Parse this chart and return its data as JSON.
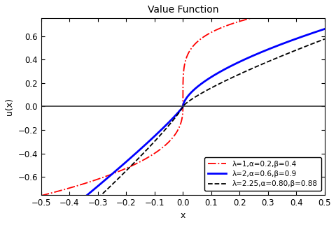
{
  "title": "Value Function",
  "xlabel": "x",
  "ylabel": "u(x)",
  "xlim": [
    -0.5,
    0.5
  ],
  "ylim": [
    -0.75,
    0.75
  ],
  "x_ticks": [
    -0.5,
    -0.4,
    -0.3,
    -0.2,
    -0.1,
    0.0,
    0.1,
    0.2,
    0.3,
    0.4,
    0.5
  ],
  "y_ticks": [
    -0.6,
    -0.4,
    -0.2,
    0.0,
    0.2,
    0.4,
    0.6
  ],
  "curves": [
    {
      "lambda": 1.0,
      "alpha": 0.2,
      "beta": 0.4,
      "color": "#ff0000",
      "linestyle": "-.",
      "linewidth": 1.3,
      "label": "λ=1,α=0.2,β=0.4"
    },
    {
      "lambda": 2.0,
      "alpha": 0.6,
      "beta": 0.9,
      "color": "#0000ff",
      "linestyle": "-",
      "linewidth": 2.0,
      "label": "λ=2,α=0.6,β=0.9"
    },
    {
      "lambda": 2.25,
      "alpha": 0.8,
      "beta": 0.88,
      "color": "#000000",
      "linestyle": "--",
      "linewidth": 1.3,
      "label": "λ=2.25,α=0.80,β=0.88"
    }
  ],
  "background_color": "#ffffff",
  "legend_loc": "lower right",
  "legend_fontsize": 7.5,
  "title_fontsize": 10,
  "axis_fontsize": 9,
  "tick_fontsize": 8.5
}
